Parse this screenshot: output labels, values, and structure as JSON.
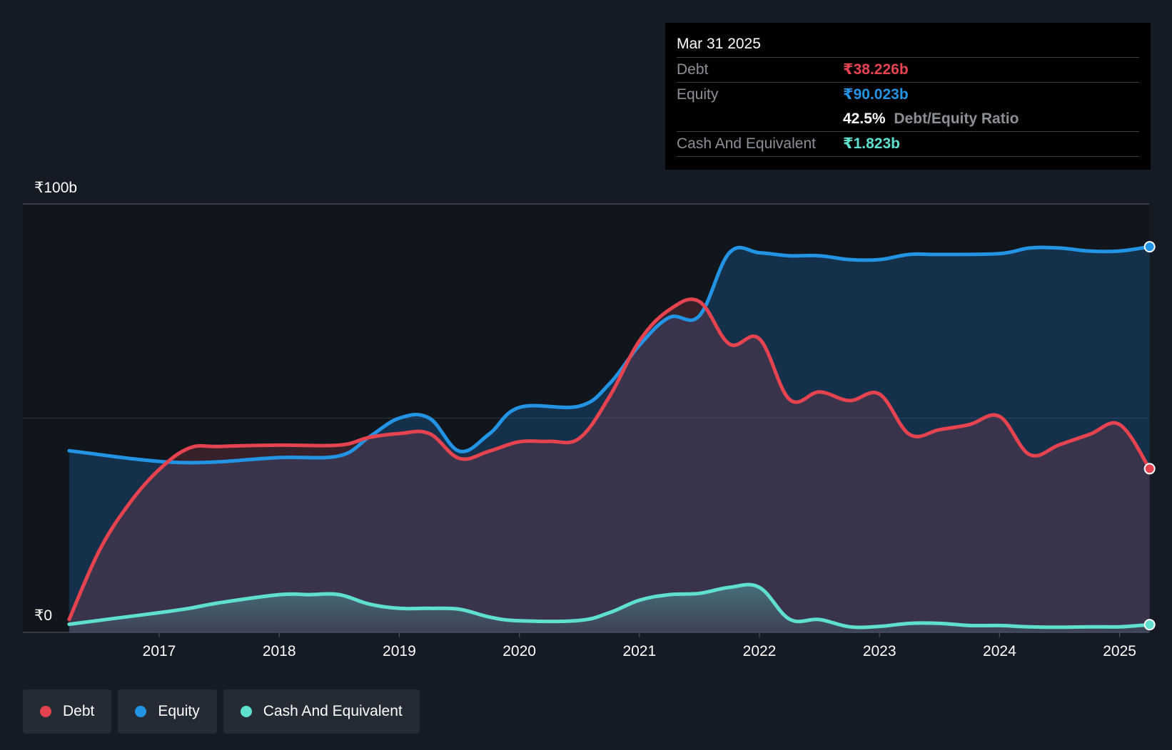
{
  "y_axis": {
    "top_label": "₹100b",
    "bottom_label": "₹0"
  },
  "tooltip": {
    "date": "Mar 31 2025",
    "rows": [
      {
        "label": "Debt",
        "value": "₹38.226b"
      },
      {
        "label": "Equity",
        "value": "₹90.023b"
      },
      {
        "label": "",
        "ratio_pct": "42.5%",
        "ratio_label": "Debt/Equity Ratio"
      },
      {
        "label": "Cash And Equivalent",
        "value": "₹1.823b"
      }
    ]
  },
  "legend": [
    {
      "label": "Debt"
    },
    {
      "label": "Equity"
    },
    {
      "label": "Cash And Equivalent"
    }
  ],
  "colors": {
    "debt": "#e5434f",
    "equity": "#2394e3",
    "cash": "#5fe0cf",
    "background": "#151b24"
  },
  "chart_data": {
    "type": "area",
    "ylim": [
      0,
      100
    ],
    "y_unit": "₹b",
    "x_ticks": [
      "2017",
      "2018",
      "2019",
      "2020",
      "2021",
      "2022",
      "2023",
      "2024",
      "2025"
    ],
    "series": [
      {
        "name": "Debt",
        "points": [
          [
            2016.25,
            3
          ],
          [
            2016.5,
            19
          ],
          [
            2016.75,
            30
          ],
          [
            2017.0,
            38
          ],
          [
            2017.25,
            43
          ],
          [
            2017.5,
            43.4
          ],
          [
            2018.0,
            43.7
          ],
          [
            2018.5,
            43.7
          ],
          [
            2018.75,
            45.5
          ],
          [
            2019.0,
            46.4
          ],
          [
            2019.25,
            46.4
          ],
          [
            2019.5,
            40.6
          ],
          [
            2019.75,
            42.3
          ],
          [
            2020.0,
            44.5
          ],
          [
            2020.25,
            44.6
          ],
          [
            2020.5,
            45.3
          ],
          [
            2020.75,
            55
          ],
          [
            2021.0,
            68
          ],
          [
            2021.25,
            75.3
          ],
          [
            2021.5,
            77.2
          ],
          [
            2021.75,
            67.3
          ],
          [
            2022.0,
            68.5
          ],
          [
            2022.25,
            54.4
          ],
          [
            2022.5,
            56.1
          ],
          [
            2022.75,
            54.1
          ],
          [
            2023.0,
            55.6
          ],
          [
            2023.25,
            46.2
          ],
          [
            2023.5,
            47.3
          ],
          [
            2023.75,
            48.5
          ],
          [
            2024.0,
            50.4
          ],
          [
            2024.25,
            41.5
          ],
          [
            2024.5,
            43.8
          ],
          [
            2024.75,
            46.2
          ],
          [
            2025.0,
            48.5
          ],
          [
            2025.25,
            38.2
          ]
        ]
      },
      {
        "name": "Equity",
        "points": [
          [
            2016.25,
            42.4
          ],
          [
            2016.5,
            41.5
          ],
          [
            2016.75,
            40.6
          ],
          [
            2017.0,
            39.9
          ],
          [
            2017.25,
            39.6
          ],
          [
            2017.5,
            39.8
          ],
          [
            2018.0,
            40.8
          ],
          [
            2018.5,
            41.2
          ],
          [
            2018.75,
            45.6
          ],
          [
            2019.0,
            50
          ],
          [
            2019.25,
            50
          ],
          [
            2019.5,
            42.3
          ],
          [
            2019.75,
            46.3
          ],
          [
            2020.0,
            52.5
          ],
          [
            2020.5,
            52.8
          ],
          [
            2020.75,
            58
          ],
          [
            2021.0,
            67
          ],
          [
            2021.25,
            73.5
          ],
          [
            2021.5,
            73.9
          ],
          [
            2021.75,
            88.6
          ],
          [
            2022.0,
            88.6
          ],
          [
            2022.25,
            87.9
          ],
          [
            2022.5,
            87.9
          ],
          [
            2022.75,
            87.0
          ],
          [
            2023.0,
            87.0
          ],
          [
            2023.25,
            88.2
          ],
          [
            2023.5,
            88.2
          ],
          [
            2024.0,
            88.4
          ],
          [
            2024.25,
            89.7
          ],
          [
            2024.5,
            89.7
          ],
          [
            2024.75,
            89.0
          ],
          [
            2025.0,
            89.0
          ],
          [
            2025.25,
            90.0
          ]
        ]
      },
      {
        "name": "Cash And Equivalent",
        "points": [
          [
            2016.25,
            1.9
          ],
          [
            2016.5,
            2.8
          ],
          [
            2016.75,
            3.7
          ],
          [
            2017.0,
            4.6
          ],
          [
            2017.25,
            5.6
          ],
          [
            2017.5,
            6.9
          ],
          [
            2018.0,
            8.8
          ],
          [
            2018.25,
            8.8
          ],
          [
            2018.5,
            8.8
          ],
          [
            2018.75,
            6.6
          ],
          [
            2019.0,
            5.6
          ],
          [
            2019.25,
            5.6
          ],
          [
            2019.5,
            5.4
          ],
          [
            2019.75,
            3.6
          ],
          [
            2020.0,
            2.7
          ],
          [
            2020.5,
            2.8
          ],
          [
            2020.75,
            4.6
          ],
          [
            2021.0,
            7.5
          ],
          [
            2021.25,
            8.8
          ],
          [
            2021.5,
            9.1
          ],
          [
            2021.75,
            10.5
          ],
          [
            2022.0,
            10.5
          ],
          [
            2022.25,
            3.1
          ],
          [
            2022.5,
            3.0
          ],
          [
            2022.75,
            1.3
          ],
          [
            2023.0,
            1.4
          ],
          [
            2023.25,
            2.1
          ],
          [
            2023.5,
            2.1
          ],
          [
            2023.75,
            1.6
          ],
          [
            2024.0,
            1.6
          ],
          [
            2024.25,
            1.3
          ],
          [
            2024.5,
            1.2
          ],
          [
            2024.75,
            1.3
          ],
          [
            2025.0,
            1.3
          ],
          [
            2025.25,
            1.8
          ]
        ]
      }
    ],
    "legend_position": "bottom-left",
    "grid": true
  }
}
